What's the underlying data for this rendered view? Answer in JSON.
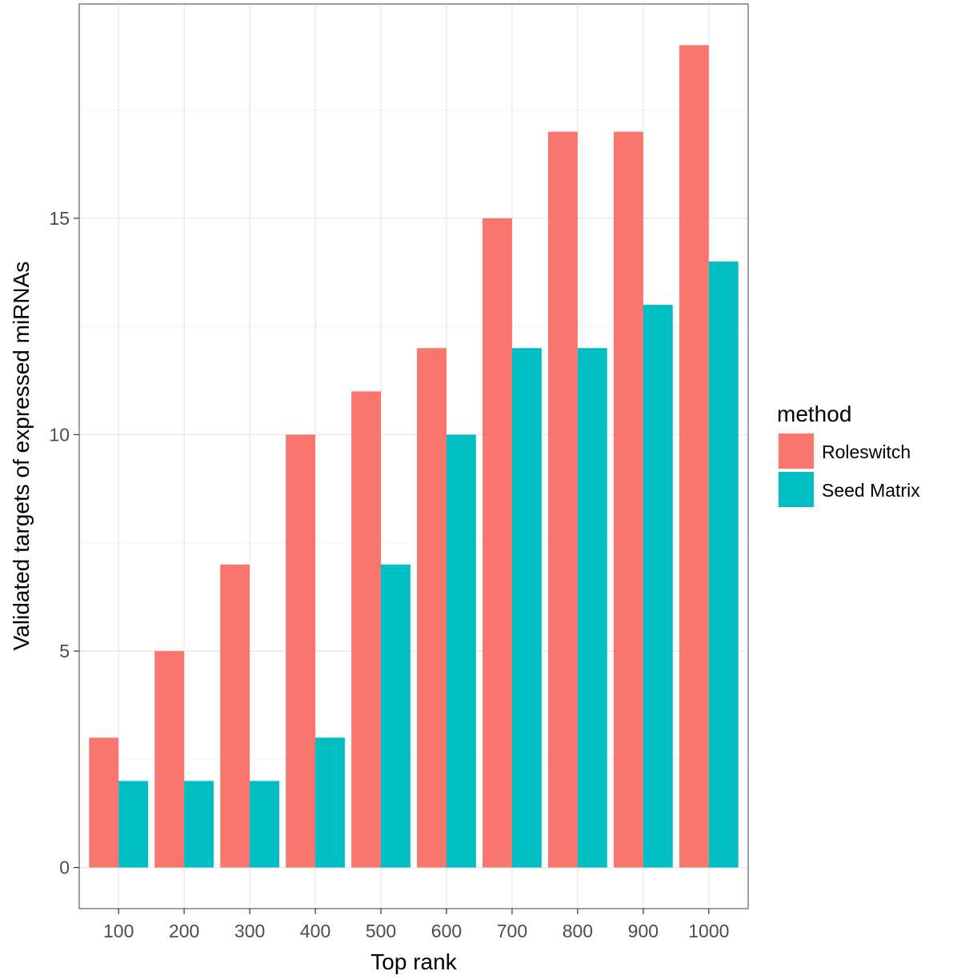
{
  "chart_data": {
    "type": "bar",
    "title": "",
    "xlabel": "Top rank",
    "ylabel": "Validated targets of expressed miRNAs",
    "categories": [
      "100",
      "200",
      "300",
      "400",
      "500",
      "600",
      "700",
      "800",
      "900",
      "1000"
    ],
    "series": [
      {
        "name": "Roleswitch",
        "color": "#F8766D",
        "values": [
          3,
          5,
          7,
          10,
          11,
          12,
          15,
          17,
          17,
          19
        ]
      },
      {
        "name": "Seed Matrix",
        "color": "#00BFC4",
        "values": [
          2,
          2,
          2,
          3,
          7,
          10,
          12,
          12,
          13,
          14
        ]
      }
    ],
    "ylim": [
      -0.95,
      19.95
    ],
    "yticks": [
      0,
      5,
      10,
      15
    ],
    "ytick_labels": [
      "0",
      "5",
      "10",
      "15"
    ],
    "grid": true,
    "legend": {
      "title": "method",
      "position": "right"
    }
  }
}
